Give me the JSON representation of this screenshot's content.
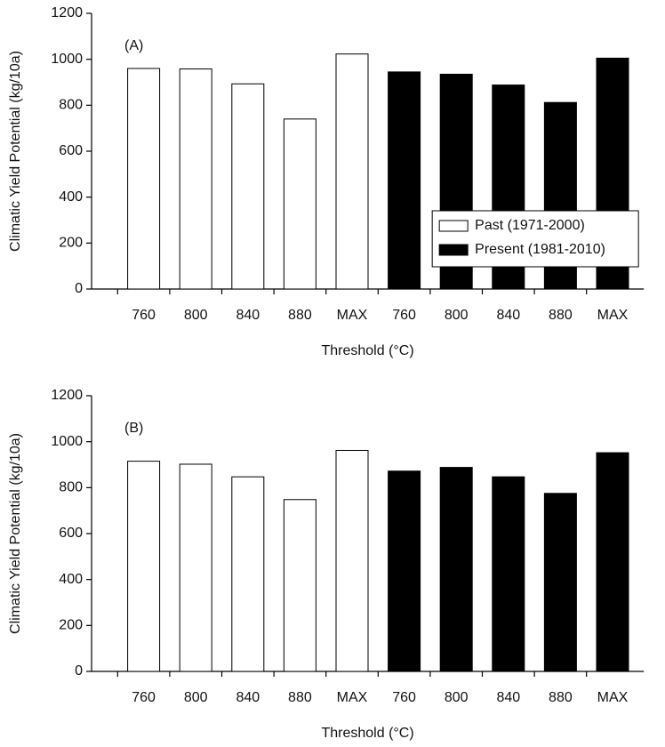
{
  "chart_data": [
    {
      "type": "bar",
      "annotation": "(A)",
      "categories": [
        "760",
        "800",
        "840",
        "880",
        "MAX",
        "760",
        "800",
        "840",
        "880",
        "MAX"
      ],
      "series": [
        {
          "name": "Past (1971-2000)",
          "color": "#ffffff",
          "values": [
            960,
            958,
            893,
            740,
            1023,
            null,
            null,
            null,
            null,
            null
          ]
        },
        {
          "name": "Present (1981-2010)",
          "color": "#000000",
          "values": [
            null,
            null,
            null,
            null,
            null,
            945,
            935,
            888,
            812,
            1005
          ]
        }
      ],
      "xlabel": "Threshold (°C)",
      "ylabel": "Climatic Yield Potential (kg/10a)",
      "ylim": [
        0,
        1200
      ],
      "yticks": [
        0,
        200,
        400,
        600,
        800,
        1000,
        1200
      ],
      "legend": "lower right"
    },
    {
      "type": "bar",
      "annotation": "(B)",
      "categories": [
        "760",
        "800",
        "840",
        "880",
        "MAX",
        "760",
        "800",
        "840",
        "880",
        "MAX"
      ],
      "series": [
        {
          "color": "#ffffff",
          "values": [
            915,
            902,
            847,
            748,
            962,
            null,
            null,
            null,
            null,
            null
          ]
        },
        {
          "color": "#000000",
          "values": [
            null,
            null,
            null,
            null,
            null,
            872,
            888,
            847,
            775,
            952
          ]
        }
      ],
      "xlabel": "Threshold (°C)",
      "ylabel": "Climatic Yield Potential (kg/10a)",
      "ylim": [
        0,
        1200
      ],
      "yticks": [
        0,
        200,
        400,
        600,
        800,
        1000,
        1200
      ]
    }
  ]
}
